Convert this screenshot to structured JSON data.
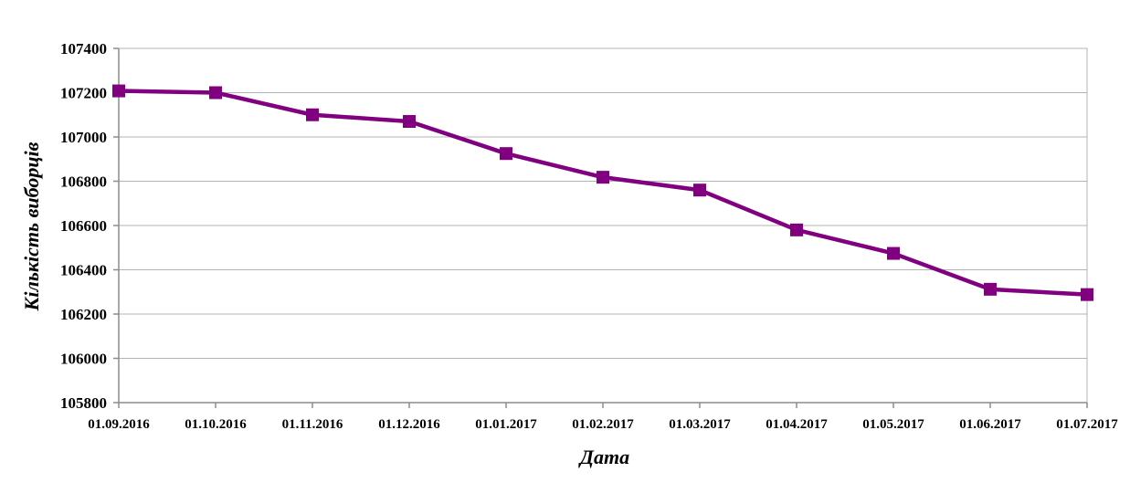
{
  "chart_data": {
    "type": "line",
    "xlabel": "Дата",
    "ylabel": "Кількість виборців",
    "categories": [
      "01.09.2016",
      "01.10.2016",
      "01.11.2016",
      "01.12.2016",
      "01.01.2017",
      "01.02.2017",
      "01.03.2017",
      "01.04.2017",
      "01.05.2017",
      "01.06.2017",
      "01.07.2017"
    ],
    "series": [
      {
        "values": [
          107208,
          107200,
          107100,
          107070,
          106925,
          106818,
          106760,
          106580,
          106474,
          106312,
          106288
        ]
      }
    ],
    "ylim": [
      105800,
      107400
    ],
    "yticks": [
      "105800",
      "106000",
      "106200",
      "106400",
      "106600",
      "106800",
      "107000",
      "107200",
      "107400"
    ],
    "grid": true,
    "legend": "none",
    "line_color": "#800080",
    "marker": "square"
  }
}
